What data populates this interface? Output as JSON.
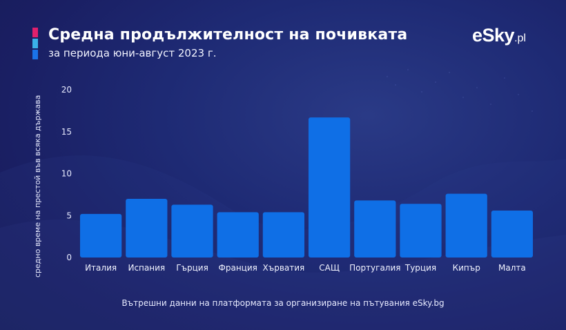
{
  "header": {
    "title": "Средна продължителност на почивката",
    "subtitle": "за периода юни-август 2023 г."
  },
  "logo": {
    "main": "eSky",
    "suffix": ".pl"
  },
  "footer": {
    "source": "Вътрешни данни на платформата за организиране на пътувания eSky.bg"
  },
  "colors": {
    "bar": "#0f6fe6",
    "accent_top": "#e0206c",
    "accent_mid": "#3ab0e8",
    "accent_bottom": "#1a72e8"
  },
  "chart_data": {
    "type": "bar",
    "title": "Средна продължителност на почивката",
    "subtitle": "за периода юни-август 2023 г.",
    "xlabel": "",
    "ylabel": "средно време на престой във всяка държава",
    "ylim": [
      0,
      20
    ],
    "yticks": [
      0,
      5,
      10,
      15,
      20
    ],
    "grid": false,
    "categories": [
      "Италия",
      "Испания",
      "Гърция",
      "Франция",
      "Хърватия",
      "САЩ",
      "Португалия",
      "Турция",
      "Кипър",
      "Малта"
    ],
    "values": [
      5.2,
      7.0,
      6.3,
      5.4,
      5.4,
      16.7,
      6.8,
      6.4,
      7.6,
      5.6
    ]
  }
}
